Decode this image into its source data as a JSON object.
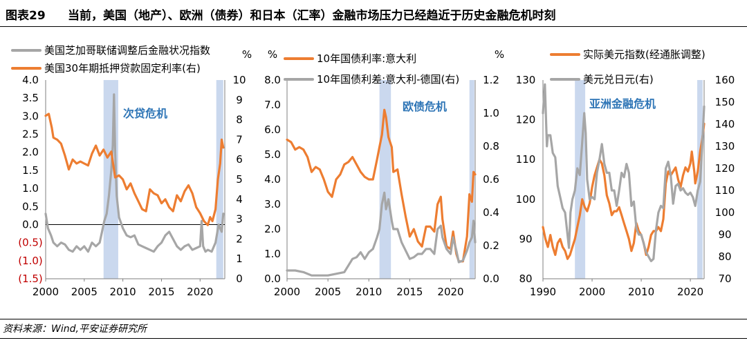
{
  "figure": {
    "number": "图表29",
    "title": "当前，美国（地产）、欧洲（债券）和日本（汇率）金融市场压力已经趋近于历史金融危机时刻",
    "source": "资料来源：Wind,平安证券研究所"
  },
  "colors": {
    "gray": "#a6a6a6",
    "orange": "#ed7d31",
    "band": "#b4c7e7",
    "red": "#c00000",
    "annotation": "#2e75b6"
  },
  "chart_data": [
    {
      "type": "line",
      "left_unit": "",
      "right_unit": "%",
      "left_ticks": [
        "4.0",
        "3.5",
        "3.0",
        "2.5",
        "2.0",
        "1.5",
        "1.0",
        "0.5",
        "0.0",
        "(0.5)",
        "(1.0)",
        "(1.5)"
      ],
      "left_tick_values": [
        4.0,
        3.5,
        3.0,
        2.5,
        2.0,
        1.5,
        1.0,
        0.5,
        0.0,
        -0.5,
        -1.0,
        -1.5
      ],
      "right_ticks": [
        "10",
        "9",
        "8",
        "7",
        "6",
        "5",
        "4",
        "3",
        "2",
        "1",
        "0"
      ],
      "right_tick_values": [
        10,
        9,
        8,
        7,
        6,
        5,
        4,
        3,
        2,
        1,
        0
      ],
      "x_ticks": [
        "2000",
        "2005",
        "2010",
        "2015",
        "2020"
      ],
      "x_tick_values": [
        2000,
        2005,
        2010,
        2015,
        2020
      ],
      "xlim": [
        2000,
        2023.2
      ],
      "ylim_left": [
        -1.5,
        4.0
      ],
      "ylim_right": [
        0,
        10
      ],
      "zero_line": 0,
      "annotation": "次贷危机",
      "shaded": [
        [
          2007.5,
          2009.4
        ],
        [
          2022.1,
          2023.0
        ]
      ],
      "series": [
        {
          "name": "美国芝加哥联储调整后金融状况指数",
          "axis": "left",
          "color": "gray",
          "x": [
            2000,
            2000.3,
            2000.7,
            2001,
            2001.5,
            2002,
            2002.5,
            2003,
            2003.5,
            2004,
            2004.5,
            2005,
            2005.5,
            2006,
            2006.5,
            2007,
            2007.3,
            2007.6,
            2007.9,
            2008.2,
            2008.5,
            2008.7,
            2008.85,
            2009,
            2009.2,
            2009.5,
            2010,
            2010.5,
            2011,
            2011.5,
            2012,
            2012.5,
            2013,
            2013.5,
            2014,
            2014.5,
            2015,
            2015.5,
            2016,
            2016.5,
            2017,
            2017.5,
            2018,
            2018.5,
            2019,
            2019.5,
            2020,
            2020.2,
            2020.4,
            2020.7,
            2021,
            2021.5,
            2022,
            2022.4,
            2022.8,
            2023.0
          ],
          "y": [
            0.3,
            -0.1,
            -0.3,
            -0.5,
            -0.6,
            -0.5,
            -0.55,
            -0.7,
            -0.75,
            -0.6,
            -0.7,
            -0.6,
            -0.75,
            -0.5,
            -0.6,
            -0.5,
            -0.2,
            0.1,
            0.3,
            0.8,
            1.5,
            2.2,
            3.6,
            2.0,
            0.8,
            0.2,
            -0.1,
            -0.3,
            -0.35,
            -0.3,
            -0.55,
            -0.6,
            -0.65,
            -0.7,
            -0.75,
            -0.6,
            -0.5,
            -0.3,
            -0.2,
            -0.4,
            -0.6,
            -0.7,
            -0.6,
            -0.55,
            -0.7,
            -0.65,
            -0.6,
            0.1,
            -0.6,
            -0.75,
            -0.7,
            -0.75,
            -0.5,
            0.0,
            -0.2,
            0.3
          ]
        },
        {
          "name": "美国30年期抵押贷款固定利率(右)",
          "axis": "right",
          "color": "orange",
          "x": [
            2000,
            2000.4,
            2000.8,
            2001,
            2001.5,
            2002,
            2002.5,
            2003,
            2003.5,
            2004,
            2004.5,
            2005,
            2005.5,
            2006,
            2006.5,
            2007,
            2007.5,
            2008,
            2008.5,
            2009,
            2009.5,
            2010,
            2010.5,
            2011,
            2011.5,
            2012,
            2012.5,
            2013,
            2013.5,
            2014,
            2014.5,
            2015,
            2015.5,
            2016,
            2016.5,
            2017,
            2017.5,
            2018,
            2018.5,
            2019,
            2019.5,
            2020,
            2020.5,
            2021,
            2021.3,
            2021.6,
            2022,
            2022.3,
            2022.6,
            2022.8,
            2023.0
          ],
          "y": [
            8.2,
            8.3,
            7.6,
            7.1,
            7.0,
            6.8,
            6.2,
            5.5,
            6.0,
            5.8,
            5.9,
            5.8,
            5.7,
            6.3,
            6.7,
            6.2,
            6.5,
            6.1,
            6.4,
            5.1,
            5.2,
            5.0,
            4.5,
            4.8,
            4.3,
            3.9,
            3.5,
            3.4,
            4.5,
            4.3,
            4.2,
            3.8,
            4.0,
            3.6,
            3.4,
            4.2,
            3.9,
            4.4,
            4.7,
            4.3,
            3.6,
            3.3,
            2.9,
            2.7,
            3.1,
            2.9,
            3.5,
            5.0,
            5.8,
            7.0,
            6.6
          ]
        }
      ]
    },
    {
      "type": "line",
      "left_unit": "%",
      "right_unit": "%",
      "left_ticks": [
        "8.0",
        "7.0",
        "6.0",
        "5.0",
        "4.0",
        "3.0",
        "2.0",
        "1.0",
        "0.0"
      ],
      "left_tick_values": [
        8,
        7,
        6,
        5,
        4,
        3,
        2,
        1,
        0
      ],
      "right_ticks": [
        "1.2",
        "1.0",
        "0.8",
        "0.6",
        "0.4",
        "0.2",
        "0.0"
      ],
      "right_tick_values": [
        1.2,
        1.0,
        0.8,
        0.6,
        0.4,
        0.2,
        0.0
      ],
      "x_ticks": [
        "2000",
        "2005",
        "2010",
        "2015",
        "2020"
      ],
      "x_tick_values": [
        2000,
        2005,
        2010,
        2015,
        2020
      ],
      "xlim": [
        2000,
        2023.0
      ],
      "ylim_left": [
        0,
        8
      ],
      "ylim_right": [
        0,
        1.2
      ],
      "annotation": "欧债危机",
      "shaded": [
        [
          2011.3,
          2012.7
        ],
        [
          2022.3,
          2022.9
        ]
      ],
      "series": [
        {
          "name": "10年国债利率:意大利",
          "axis": "left",
          "color": "orange",
          "x": [
            2000,
            2000.5,
            2001,
            2001.5,
            2002,
            2002.5,
            2003,
            2003.5,
            2004,
            2004.5,
            2005,
            2005.5,
            2006,
            2006.5,
            2007,
            2007.5,
            2008,
            2008.5,
            2009,
            2009.5,
            2010,
            2010.5,
            2011,
            2011.3,
            2011.6,
            2011.9,
            2012.1,
            2012.4,
            2012.8,
            2013,
            2013.5,
            2014,
            2014.5,
            2015,
            2015.5,
            2016,
            2016.5,
            2017,
            2017.5,
            2018,
            2018.4,
            2018.8,
            2019,
            2019.5,
            2020,
            2020.3,
            2020.7,
            2021,
            2021.5,
            2022,
            2022.3,
            2022.6,
            2022.8,
            2023.0
          ],
          "y": [
            5.6,
            5.5,
            5.2,
            5.3,
            5.2,
            4.9,
            4.3,
            4.5,
            4.4,
            4.0,
            3.5,
            3.3,
            4.0,
            4.2,
            4.6,
            4.7,
            4.9,
            4.6,
            4.3,
            4.1,
            4.0,
            4.0,
            4.8,
            5.3,
            5.8,
            6.8,
            6.5,
            5.7,
            5.3,
            4.3,
            4.4,
            3.4,
            2.5,
            1.7,
            2.0,
            1.5,
            1.3,
            2.1,
            2.1,
            1.9,
            3.0,
            3.3,
            2.4,
            1.3,
            1.2,
            1.9,
            1.0,
            0.7,
            0.7,
            1.7,
            3.4,
            3.1,
            4.3,
            4.2
          ]
        },
        {
          "name": "10年国债利差:意大利-德国(右)",
          "axis": "right",
          "color": "gray",
          "x": [
            2000,
            2001,
            2002,
            2003,
            2004,
            2005,
            2006,
            2007,
            2007.5,
            2008,
            2008.5,
            2009,
            2009.5,
            2010,
            2010.5,
            2011,
            2011.3,
            2011.6,
            2011.9,
            2012.1,
            2012.4,
            2012.8,
            2013,
            2013.5,
            2014,
            2014.5,
            2015,
            2015.5,
            2016,
            2016.5,
            2017,
            2017.5,
            2018,
            2018.4,
            2018.8,
            2019,
            2019.5,
            2020,
            2020.3,
            2020.7,
            2021,
            2021.5,
            2022,
            2022.3,
            2022.6,
            2022.8,
            2023.0
          ],
          "y": [
            0.05,
            0.05,
            0.04,
            0.02,
            0.02,
            0.02,
            0.03,
            0.04,
            0.08,
            0.12,
            0.13,
            0.16,
            0.12,
            0.16,
            0.18,
            0.25,
            0.3,
            0.45,
            0.52,
            0.42,
            0.48,
            0.35,
            0.3,
            0.3,
            0.22,
            0.17,
            0.12,
            0.13,
            0.15,
            0.15,
            0.18,
            0.18,
            0.15,
            0.3,
            0.32,
            0.25,
            0.18,
            0.15,
            0.25,
            0.17,
            0.1,
            0.11,
            0.17,
            0.22,
            0.25,
            0.35,
            0.22
          ]
        }
      ]
    },
    {
      "type": "line",
      "left_unit": "",
      "right_unit": "",
      "left_ticks": [
        "130",
        "120",
        "110",
        "100",
        "90",
        "80"
      ],
      "left_tick_values": [
        130,
        120,
        110,
        100,
        90,
        80
      ],
      "right_ticks": [
        "160",
        "150",
        "140",
        "130",
        "120",
        "110",
        "100",
        "90",
        "80",
        "70"
      ],
      "right_tick_values": [
        160,
        150,
        140,
        130,
        120,
        110,
        100,
        90,
        80,
        70
      ],
      "x_ticks": [
        "1990",
        "2000",
        "2010",
        "2020"
      ],
      "x_tick_values": [
        1990,
        2000,
        2010,
        2020
      ],
      "xlim": [
        1990,
        2022.8
      ],
      "ylim_left": [
        80,
        130
      ],
      "ylim_right": [
        70,
        160
      ],
      "annotation": "亚洲金融危机",
      "shaded": [
        [
          1996.5,
          1998.6
        ],
        [
          2021.4,
          2022.5
        ]
      ],
      "series": [
        {
          "name": "实际美元指数(经通胀调整)",
          "axis": "left",
          "color": "orange",
          "x": [
            1990,
            1990.5,
            1991,
            1991.5,
            1992,
            1992.5,
            1993,
            1993.5,
            1994,
            1994.5,
            1995,
            1995.5,
            1996,
            1996.5,
            1997,
            1997.5,
            1998,
            1998.5,
            1999,
            1999.5,
            2000,
            2000.5,
            2001,
            2001.5,
            2002,
            2002.5,
            2003,
            2003.5,
            2004,
            2004.5,
            2005,
            2005.5,
            2006,
            2006.5,
            2007,
            2007.5,
            2008,
            2008.5,
            2009,
            2009.5,
            2010,
            2010.5,
            2011,
            2011.5,
            2012,
            2012.5,
            2013,
            2013.5,
            2014,
            2014.5,
            2015,
            2015.5,
            2016,
            2016.5,
            2017,
            2017.5,
            2018,
            2018.5,
            2019,
            2019.5,
            2020,
            2020.3,
            2020.8,
            2021,
            2021.5,
            2022,
            2022.4,
            2022.8
          ],
          "y": [
            93,
            90,
            88,
            91,
            88,
            86,
            89,
            90,
            88,
            87,
            85,
            86,
            88,
            90,
            93,
            96,
            100,
            98,
            97,
            99,
            103,
            106,
            108,
            110,
            109,
            106,
            101,
            99,
            96,
            97,
            97,
            98,
            96,
            94,
            92,
            90,
            87,
            89,
            94,
            92,
            91,
            89,
            86,
            88,
            91,
            92,
            92,
            93,
            92,
            95,
            104,
            107,
            106,
            107,
            108,
            105,
            103,
            106,
            108,
            107,
            109,
            112,
            107,
            104,
            107,
            112,
            115,
            119
          ]
        },
        {
          "name": "美元兑日元(右)",
          "axis": "right",
          "color": "gray",
          "x": [
            1990,
            1990.4,
            1990.8,
            1991,
            1991.5,
            1992,
            1992.5,
            1993,
            1993.5,
            1994,
            1994.5,
            1995,
            1995.3,
            1995.6,
            1996,
            1996.5,
            1997,
            1997.5,
            1998,
            1998.4,
            1998.7,
            1999,
            1999.5,
            2000,
            2000.5,
            2001,
            2001.5,
            2002,
            2002.5,
            2003,
            2003.5,
            2004,
            2004.5,
            2005,
            2005.5,
            2006,
            2006.5,
            2007,
            2007.5,
            2008,
            2008.5,
            2009,
            2009.5,
            2010,
            2010.5,
            2011,
            2011.5,
            2012,
            2012.5,
            2013,
            2013.5,
            2014,
            2014.5,
            2015,
            2015.5,
            2016,
            2016.5,
            2017,
            2017.5,
            2018,
            2018.5,
            2019,
            2019.5,
            2020,
            2020.5,
            2021,
            2021.5,
            2022,
            2022.4,
            2022.8
          ],
          "y": [
            145,
            158,
            130,
            135,
            135,
            127,
            125,
            112,
            107,
            102,
            100,
            90,
            84,
            100,
            106,
            110,
            120,
            117,
            132,
            145,
            136,
            115,
            106,
            107,
            106,
            118,
            124,
            131,
            122,
            118,
            118,
            110,
            110,
            103,
            110,
            118,
            116,
            122,
            118,
            103,
            105,
            93,
            90,
            90,
            86,
            82,
            80,
            78,
            79,
            92,
            100,
            103,
            102,
            120,
            123,
            117,
            104,
            112,
            113,
            110,
            111,
            109,
            108,
            109,
            107,
            103,
            110,
            114,
            130,
            148
          ]
        }
      ]
    }
  ],
  "legends": [
    [
      "美国芝加哥联储调整后金融状况指数",
      "美国30年期抵押贷款固定利率(右)"
    ],
    [
      "10年国债利率:意大利",
      "10年国债利差:意大利-德国(右)"
    ],
    [
      "实际美元指数(经通胀调整)",
      "美元兑日元(右)"
    ]
  ]
}
